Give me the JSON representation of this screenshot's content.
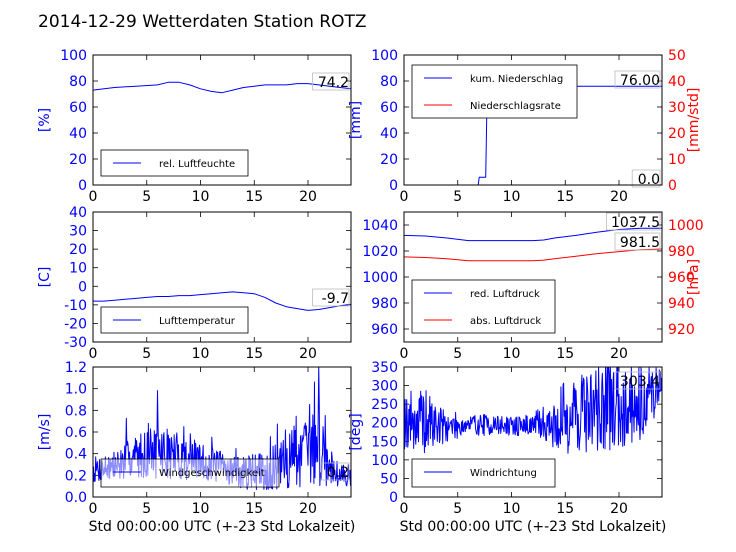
{
  "figure": {
    "title": "2014-12-29 Wetterdaten Station ROTZ"
  },
  "colors": {
    "primary": "#0000ff",
    "secondary": "#ff0000",
    "axis": "#000000"
  },
  "chart_data": [
    {
      "id": "humidity",
      "type": "line",
      "xlabel": "",
      "ylabel": "[%]",
      "xlim": [
        0,
        24
      ],
      "ylim": [
        0,
        100
      ],
      "xticks": [
        0,
        5,
        10,
        15,
        20
      ],
      "yticks": [
        0,
        20,
        40,
        60,
        80,
        100
      ],
      "legend_position": "bottom-left",
      "series": [
        {
          "name": "rel. Luftfeuchte",
          "color": "#0000ff",
          "x": [
            0,
            2,
            4,
            6,
            7,
            8,
            9,
            10,
            11,
            12,
            13,
            14,
            15,
            16,
            17,
            18,
            19,
            20,
            21,
            22,
            23,
            24
          ],
          "y": [
            73,
            75,
            76,
            77,
            79,
            79,
            77,
            74,
            72,
            71,
            73,
            75,
            76,
            77,
            77,
            77,
            78,
            78,
            77,
            76,
            75,
            74
          ]
        }
      ],
      "annotations": [
        {
          "text": "74.2",
          "color": "#000000"
        }
      ]
    },
    {
      "id": "precip",
      "type": "line",
      "xlabel": "",
      "ylabel": "[mm]",
      "ylabel_right": "[mm/std]",
      "xlim": [
        0,
        24
      ],
      "ylim": [
        0,
        100
      ],
      "ylim_right": [
        0,
        50
      ],
      "xticks": [
        0,
        5,
        10,
        15,
        20
      ],
      "yticks": [
        0,
        20,
        40,
        60,
        80,
        100
      ],
      "yticks_right": [
        0,
        10,
        20,
        30,
        40,
        50
      ],
      "legend_position": "top-left",
      "series": [
        {
          "name": "kum. Niederschlag",
          "color": "#0000ff",
          "axis": "left",
          "x": [
            0,
            6.9,
            7.0,
            7.6,
            7.7,
            8.0,
            8.1,
            9.5,
            9.6,
            24
          ],
          "y": [
            0,
            0,
            6,
            6,
            55,
            70,
            72,
            72,
            76,
            76
          ]
        },
        {
          "name": "Niederschlagsrate",
          "color": "#ff0000",
          "axis": "right",
          "x": [
            0,
            24
          ],
          "y": [
            0,
            0
          ]
        }
      ],
      "annotations": [
        {
          "text": "76.00",
          "color": "#000000"
        },
        {
          "text": "0.0",
          "color": "#000000"
        }
      ]
    },
    {
      "id": "temperature",
      "type": "line",
      "xlabel": "",
      "ylabel": "[C]",
      "xlim": [
        0,
        24
      ],
      "ylim": [
        -30,
        40
      ],
      "xticks": [
        0,
        5,
        10,
        15,
        20
      ],
      "yticks": [
        -30,
        -20,
        -10,
        0,
        10,
        20,
        30,
        40
      ],
      "legend_position": "bottom-left",
      "series": [
        {
          "name": "Lufttemperatur",
          "color": "#0000ff",
          "x": [
            0,
            1,
            2,
            3,
            4,
            5,
            6,
            7,
            8,
            9,
            10,
            11,
            12,
            13,
            14,
            15,
            16,
            17,
            18,
            19,
            20,
            21,
            22,
            23,
            24
          ],
          "y": [
            -8,
            -8,
            -7.5,
            -7,
            -6.5,
            -6,
            -5.5,
            -5.5,
            -5,
            -5,
            -4.5,
            -4,
            -3.5,
            -3,
            -3.5,
            -4,
            -6,
            -9,
            -11,
            -12,
            -13,
            -12.5,
            -11.5,
            -10.5,
            -9.7
          ]
        }
      ],
      "annotations": [
        {
          "text": "-9.7",
          "color": "#000000"
        }
      ]
    },
    {
      "id": "pressure",
      "type": "line",
      "xlabel": "",
      "ylabel": "",
      "ylabel_right": "[hPa]",
      "xlim": [
        0,
        24
      ],
      "ylim": [
        950,
        1050
      ],
      "ylim_right": [
        910,
        1010
      ],
      "xticks": [
        0,
        5,
        10,
        15,
        20
      ],
      "yticks": [
        960,
        980,
        1000,
        1020,
        1040
      ],
      "yticks_right": [
        920,
        940,
        960,
        980,
        1000
      ],
      "legend_position": "bottom-left",
      "series": [
        {
          "name": "red. Luftdruck",
          "color": "#0000ff",
          "axis": "left",
          "x": [
            0,
            2,
            4,
            6,
            8,
            10,
            12,
            13,
            14,
            16,
            18,
            20,
            22,
            24
          ],
          "y": [
            1032,
            1031.5,
            1030,
            1028,
            1028,
            1028,
            1028,
            1028.5,
            1030,
            1032,
            1034.5,
            1036.5,
            1037.5,
            1037.5
          ]
        },
        {
          "name": "abs. Luftdruck",
          "color": "#ff0000",
          "axis": "right",
          "x": [
            0,
            2,
            4,
            6,
            8,
            10,
            12,
            13,
            14,
            16,
            18,
            20,
            22,
            24
          ],
          "y": [
            975.5,
            975,
            974,
            972.5,
            972.5,
            972.5,
            972.5,
            973,
            974,
            976,
            978,
            979.5,
            981,
            981.5
          ]
        }
      ],
      "annotations": [
        {
          "text": "1037.5",
          "color": "#000000"
        },
        {
          "text": "981.5",
          "color": "#000000"
        }
      ]
    },
    {
      "id": "wind-speed",
      "type": "line",
      "xlabel": "Std 00:00:00 UTC (+-23 Std Lokalzeit)",
      "ylabel": "[m/s]",
      "xlim": [
        0,
        24
      ],
      "ylim": [
        0,
        1.2
      ],
      "xticks": [
        0,
        5,
        10,
        15,
        20
      ],
      "yticks": [
        0.0,
        0.2,
        0.4,
        0.6,
        0.8,
        1.0,
        1.2
      ],
      "legend_position": "bottom-center",
      "noise": {
        "samples": 480,
        "seed": 7
      },
      "series": [
        {
          "name": "Windgeschwindigkeit",
          "color": "#0000ff",
          "x": [
            0,
            2,
            4,
            6,
            8,
            10,
            12,
            14,
            16,
            18,
            19,
            20,
            21,
            22,
            23,
            24
          ],
          "y": [
            0.25,
            0.28,
            0.38,
            0.42,
            0.38,
            0.32,
            0.28,
            0.22,
            0.24,
            0.3,
            0.42,
            0.4,
            0.5,
            0.3,
            0.2,
            0.2
          ],
          "spread": [
            0.12,
            0.15,
            0.2,
            0.25,
            0.22,
            0.18,
            0.15,
            0.15,
            0.18,
            0.25,
            0.35,
            0.3,
            0.4,
            0.2,
            0.1,
            0.1
          ]
        }
      ],
      "annotations": [
        {
          "text": "0.2",
          "color": "#000000"
        }
      ]
    },
    {
      "id": "wind-direction",
      "type": "line",
      "xlabel": "Std 00:00:00 UTC (+-23 Std Lokalzeit)",
      "ylabel": "[deg]",
      "xlim": [
        0,
        24
      ],
      "ylim": [
        0,
        350
      ],
      "xticks": [
        0,
        5,
        10,
        15,
        20
      ],
      "yticks": [
        0,
        50,
        100,
        150,
        200,
        250,
        300,
        350
      ],
      "legend_position": "bottom-left",
      "noise": {
        "samples": 480,
        "seed": 19
      },
      "series": [
        {
          "name": "Windrichtung",
          "color": "#0000ff",
          "x": [
            0,
            2,
            4,
            6,
            8,
            10,
            12,
            13,
            14,
            15,
            16,
            18,
            20,
            22,
            24
          ],
          "y": [
            210,
            200,
            190,
            195,
            195,
            190,
            195,
            200,
            190,
            220,
            230,
            240,
            250,
            260,
            300
          ],
          "spread": [
            80,
            90,
            40,
            30,
            30,
            25,
            30,
            50,
            60,
            110,
            120,
            120,
            120,
            110,
            60
          ]
        }
      ],
      "annotations": [
        {
          "text": "303.4",
          "color": "#000000"
        }
      ]
    }
  ]
}
